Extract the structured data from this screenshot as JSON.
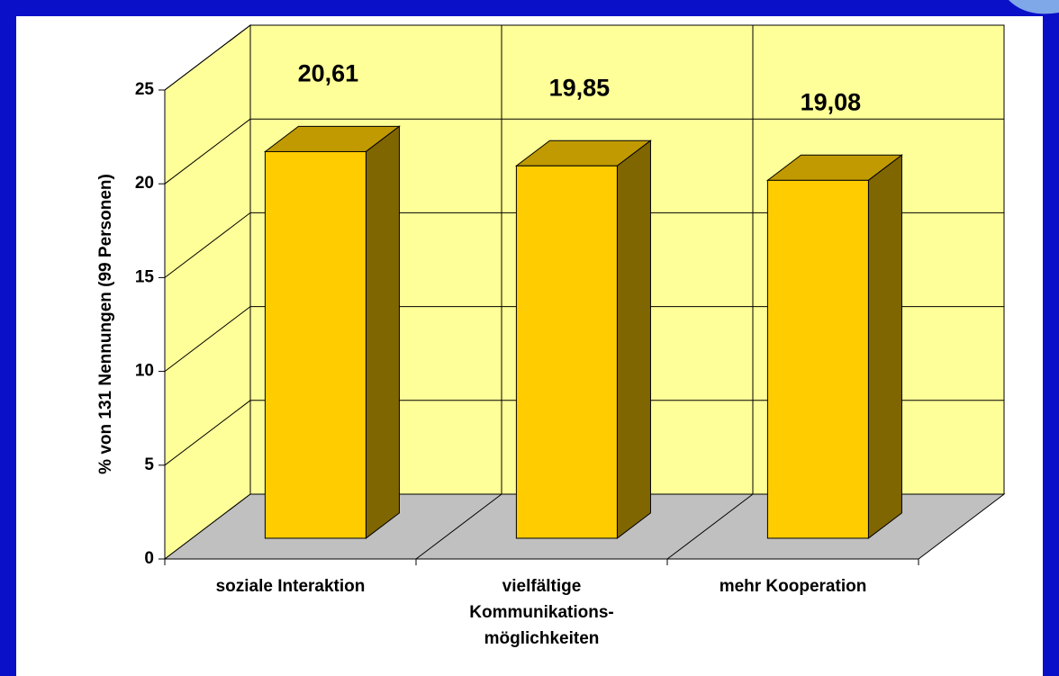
{
  "chart_data": {
    "type": "bar3d",
    "y_label": "% von 131 Nennungen (99 Personen)",
    "categories": [
      "soziale Interaktion",
      "vielfältige\nKommunikations-\nmöglichkeiten",
      "mehr Kooperation"
    ],
    "values": [
      20.61,
      19.85,
      19.08
    ],
    "value_labels": [
      "20,61",
      "19,85",
      "19,08"
    ],
    "color": "#ffcc00",
    "ylim": [
      0,
      25
    ],
    "yticks": [
      0,
      5,
      10,
      15,
      20,
      25
    ],
    "grid": true
  }
}
